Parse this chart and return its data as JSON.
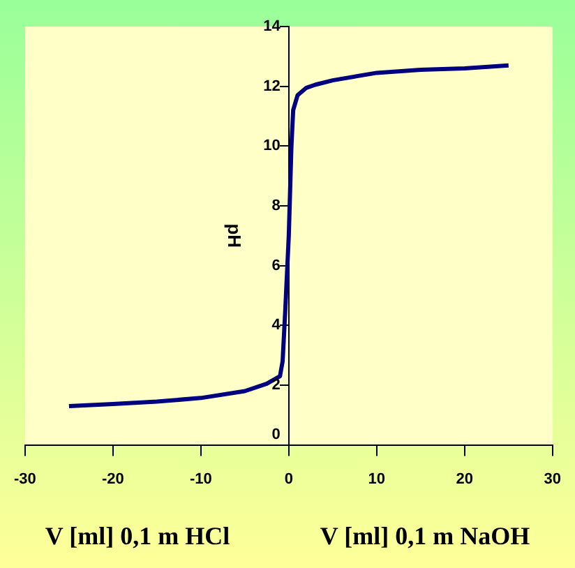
{
  "chart_data": {
    "type": "line",
    "ylabel": "pH",
    "annotations": [
      "V [ml] 0,1 m HCl",
      "V [ml] 0,1 m NaOH"
    ],
    "xlim": [
      -30,
      30
    ],
    "xticks": [
      -30,
      -20,
      -10,
      0,
      10,
      20,
      30
    ],
    "ylim": [
      0,
      14
    ],
    "yticks": [
      0,
      2,
      4,
      6,
      8,
      10,
      12,
      14
    ],
    "grid": false,
    "legend": false,
    "marker": "none",
    "line_style": "solid",
    "series": [
      {
        "color": "#000080",
        "x": [
          -25,
          -20,
          -15,
          -10,
          -5,
          -2.5,
          -1,
          -0.7,
          -0.4,
          0,
          0.3,
          0.5,
          1,
          2,
          3,
          5,
          10,
          15,
          20,
          25
        ],
        "values": [
          1.3,
          1.37,
          1.45,
          1.57,
          1.8,
          2.05,
          2.3,
          2.8,
          4.5,
          7,
          10,
          11.2,
          11.7,
          11.95,
          12.05,
          12.2,
          12.45,
          12.55,
          12.6,
          12.7
        ]
      }
    ]
  }
}
